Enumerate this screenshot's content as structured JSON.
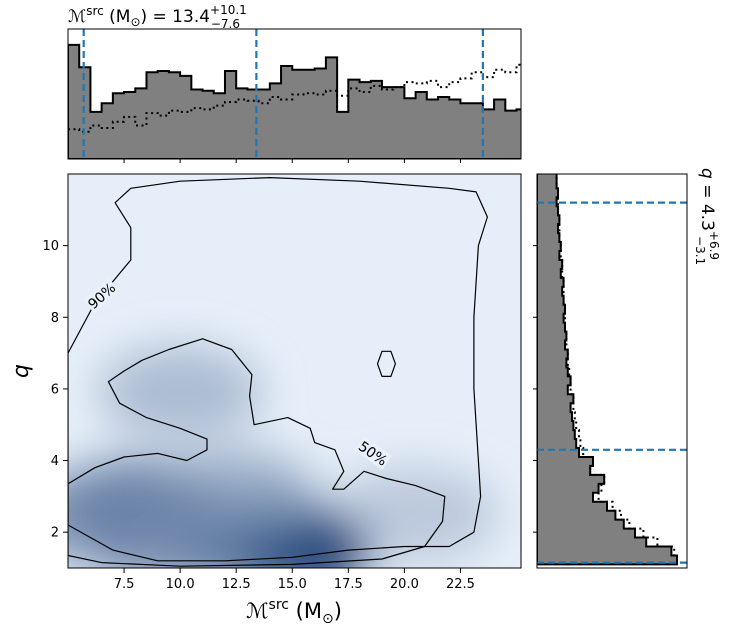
{
  "chart_data": [
    {
      "type": "heatmap",
      "panel": "joint",
      "xlabel": "ℳsrc (M⊙)",
      "ylabel": "q",
      "xlim": [
        5.0,
        25.2
      ],
      "ylim": [
        1.0,
        12.0
      ],
      "xticks": [
        7.5,
        10.0,
        12.5,
        15.0,
        17.5,
        20.0,
        22.5
      ],
      "xtick_labels": [
        "7.5",
        "10.0",
        "12.5",
        "15.0",
        "17.5",
        "20.0",
        "22.5"
      ],
      "yticks": [
        2,
        4,
        6,
        8,
        10
      ],
      "ytick_labels": [
        "2",
        "4",
        "6",
        "8",
        "10"
      ],
      "colormap": "Blues",
      "density_peaks": [
        {
          "x": 15.3,
          "y": 1.5,
          "weight": 1.0
        },
        {
          "x": 13.2,
          "y": 1.7,
          "weight": 0.75
        },
        {
          "x": 8.0,
          "y": 2.8,
          "weight": 0.6
        },
        {
          "x": 6.0,
          "y": 2.4,
          "weight": 0.45
        },
        {
          "x": 12.5,
          "y": 3.0,
          "weight": 0.35
        },
        {
          "x": 10.0,
          "y": 5.9,
          "weight": 0.25
        },
        {
          "x": 20.5,
          "y": 2.5,
          "weight": 0.15
        },
        {
          "x": 9.5,
          "y": 1.6,
          "weight": 0.45
        }
      ],
      "contours": [
        {
          "level_label": "90%",
          "label_pos": [
            6.5,
            8.6
          ],
          "label_angle": -42,
          "points": [
            [
              5.0,
              7.0
            ],
            [
              6.2,
              8.4
            ],
            [
              7.0,
              9.0
            ],
            [
              7.8,
              9.6
            ],
            [
              7.8,
              10.5
            ],
            [
              7.1,
              11.2
            ],
            [
              7.8,
              11.6
            ],
            [
              10.0,
              11.8
            ],
            [
              14.0,
              11.9
            ],
            [
              18.0,
              11.8
            ],
            [
              22.0,
              11.6
            ],
            [
              23.2,
              11.5
            ],
            [
              23.7,
              10.8
            ],
            [
              23.3,
              10.0
            ],
            [
              23.1,
              8.0
            ],
            [
              23.1,
              6.0
            ],
            [
              23.3,
              4.0
            ],
            [
              23.4,
              3.0
            ],
            [
              23.1,
              2.0
            ],
            [
              22.0,
              1.6
            ],
            [
              20.0,
              1.6
            ],
            [
              17.5,
              1.5
            ],
            [
              15.0,
              1.3
            ],
            [
              12.0,
              1.2
            ],
            [
              9.0,
              1.2
            ],
            [
              7.0,
              1.5
            ],
            [
              5.0,
              2.2
            ]
          ]
        },
        {
          "level_label": "50%",
          "label_pos": [
            18.6,
            4.2
          ],
          "label_angle": 35,
          "points": [
            [
              5.0,
              3.35
            ],
            [
              6.2,
              3.8
            ],
            [
              7.5,
              4.1
            ],
            [
              9.0,
              4.2
            ],
            [
              10.3,
              4.0
            ],
            [
              11.2,
              4.3
            ],
            [
              11.2,
              4.6
            ],
            [
              10.0,
              4.9
            ],
            [
              8.5,
              5.2
            ],
            [
              7.3,
              5.6
            ],
            [
              6.8,
              6.2
            ],
            [
              7.5,
              6.5
            ],
            [
              8.3,
              6.8
            ],
            [
              9.5,
              7.1
            ],
            [
              11.0,
              7.4
            ],
            [
              12.3,
              7.1
            ],
            [
              13.2,
              6.4
            ],
            [
              13.1,
              5.8
            ],
            [
              13.3,
              5.0
            ],
            [
              14.8,
              5.2
            ],
            [
              15.8,
              4.9
            ],
            [
              16.0,
              4.5
            ],
            [
              16.9,
              4.3
            ],
            [
              17.3,
              3.7
            ],
            [
              16.8,
              3.2
            ],
            [
              17.3,
              3.2
            ],
            [
              18.2,
              3.7
            ],
            [
              19.2,
              3.5
            ],
            [
              20.5,
              3.3
            ],
            [
              21.8,
              3.0
            ],
            [
              21.7,
              2.3
            ],
            [
              20.9,
              1.6
            ],
            [
              19.0,
              1.25
            ],
            [
              15.0,
              1.1
            ],
            [
              10.0,
              1.05
            ],
            [
              6.5,
              1.15
            ],
            [
              5.0,
              1.35
            ]
          ]
        },
        {
          "level_label": "",
          "label_pos": [
            19.2,
            6.7
          ],
          "label_angle": 0,
          "points": [
            [
              18.8,
              6.7
            ],
            [
              19.0,
              6.35
            ],
            [
              19.4,
              6.35
            ],
            [
              19.6,
              6.7
            ],
            [
              19.4,
              7.05
            ],
            [
              19.0,
              7.05
            ]
          ]
        }
      ]
    },
    {
      "type": "bar",
      "panel": "top-marginal",
      "title": "ℳsrc (M⊙) = 13.4",
      "title_sup": "+10.1",
      "title_sub": "−7.6",
      "xlim": [
        5.0,
        25.2
      ],
      "bin_edges_start": 5.0,
      "bin_width": 0.5,
      "filled_series": [
        0.92,
        0.74,
        0.38,
        0.45,
        0.53,
        0.54,
        0.57,
        0.7,
        0.71,
        0.7,
        0.67,
        0.56,
        0.55,
        0.53,
        0.71,
        0.57,
        0.56,
        0.56,
        0.61,
        0.75,
        0.72,
        0.72,
        0.73,
        0.82,
        0.38,
        0.64,
        0.62,
        0.63,
        0.58,
        0.58,
        0.49,
        0.54,
        0.48,
        0.5,
        0.48,
        0.45,
        0.45,
        0.4,
        0.48,
        0.39,
        0.4,
        0.34,
        0.3,
        0.31,
        0.32,
        0.32,
        0.35,
        0.33,
        0.33,
        0.32,
        0.32,
        0.33,
        0.33,
        0.32,
        0.32,
        0.31,
        0.31,
        0.3
      ],
      "dotted_series": [
        0.24,
        0.22,
        0.27,
        0.25,
        0.3,
        0.34,
        0.27,
        0.37,
        0.35,
        0.39,
        0.38,
        0.41,
        0.4,
        0.43,
        0.46,
        0.48,
        0.47,
        0.45,
        0.5,
        0.48,
        0.52,
        0.53,
        0.52,
        0.55,
        0.51,
        0.57,
        0.54,
        0.59,
        0.56,
        0.58,
        0.62,
        0.61,
        0.63,
        0.58,
        0.62,
        0.65,
        0.7,
        0.66,
        0.72,
        0.7,
        0.76,
        0.73,
        0.78,
        0.8,
        0.77,
        0.81,
        0.86,
        0.8,
        0.9,
        0.85,
        0.95,
        0.83,
        0.92,
        0.87,
        0.95,
        0.9,
        1.0,
        0.93
      ],
      "quantile_lines": [
        5.7,
        13.4,
        23.5
      ]
    },
    {
      "type": "bar",
      "panel": "right-marginal",
      "title": "q = 4.3",
      "title_sup": "+6.9",
      "title_sub": "−3.1",
      "ylim": [
        1.0,
        12.0
      ],
      "bin_edges_start": 1.1,
      "bin_width": 0.25,
      "filled_series": [
        1.0,
        0.96,
        0.78,
        0.7,
        0.62,
        0.56,
        0.5,
        0.4,
        0.44,
        0.48,
        0.38,
        0.4,
        0.3,
        0.28,
        0.27,
        0.26,
        0.25,
        0.24,
        0.26,
        0.22,
        0.24,
        0.22,
        0.21,
        0.22,
        0.2,
        0.21,
        0.2,
        0.19,
        0.2,
        0.19,
        0.18,
        0.19,
        0.17,
        0.18,
        0.16,
        0.17,
        0.16,
        0.15,
        0.16,
        0.15,
        0.14,
        0.15,
        0.14,
        0.14,
        0.13,
        0.14,
        0.13,
        0.12,
        0.13,
        0.12,
        0.12,
        0.11,
        0.12,
        0.11
      ],
      "dotted_series": [
        1.0,
        0.98,
        0.86,
        0.76,
        0.66,
        0.6,
        0.54,
        0.44,
        0.46,
        0.48,
        0.38,
        0.4,
        0.33,
        0.31,
        0.3,
        0.28,
        0.27,
        0.26,
        0.26,
        0.24,
        0.24,
        0.23,
        0.22,
        0.22,
        0.21,
        0.21,
        0.2,
        0.2,
        0.2,
        0.19,
        0.19,
        0.19,
        0.18,
        0.18,
        0.17,
        0.17,
        0.16,
        0.16,
        0.16,
        0.15,
        0.15,
        0.15,
        0.14,
        0.14,
        0.14,
        0.13,
        0.13,
        0.12,
        0.13,
        0.12,
        0.12,
        0.12,
        0.11,
        0.11
      ],
      "quantile_lines": [
        1.15,
        4.3,
        11.2
      ]
    }
  ],
  "colors": {
    "hist_fill": "#808080",
    "hist_edge": "#000000",
    "quantile_line": "#1f77b4",
    "contour": "#000000",
    "density_low": "#f7fbff",
    "density_high": "#08306b"
  }
}
